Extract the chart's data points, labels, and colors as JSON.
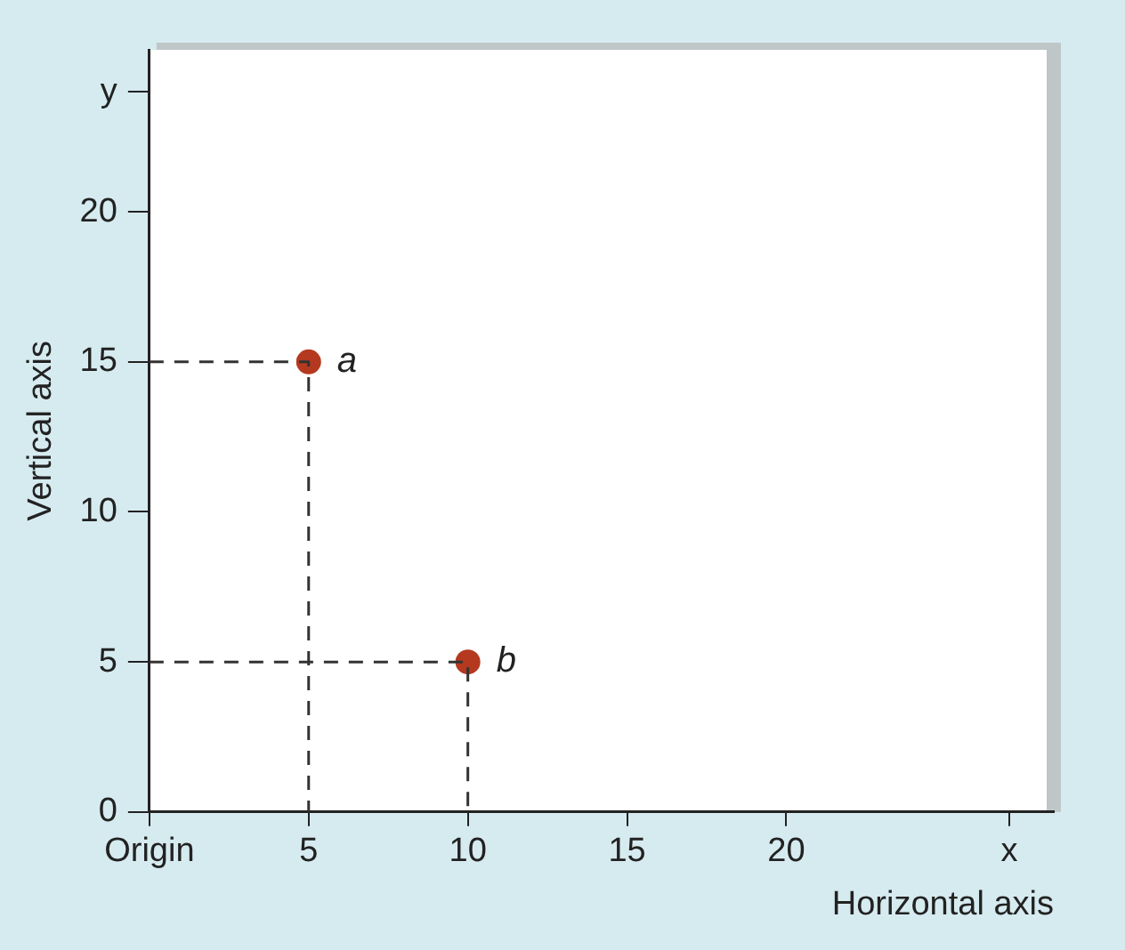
{
  "chart_data": {
    "type": "scatter",
    "xlabel": "Horizontal axis",
    "ylabel": "Vertical axis",
    "xlim": [
      0,
      28.4
    ],
    "ylim": [
      0,
      25.4
    ],
    "xticks": [
      {
        "value": 0,
        "label": "Origin"
      },
      5,
      10,
      15,
      20,
      {
        "value": 27,
        "label": "x"
      }
    ],
    "yticks": [
      0,
      5,
      10,
      15,
      20,
      {
        "value": 24,
        "label": "y"
      }
    ],
    "grid": false,
    "legend": false,
    "series": [
      {
        "type": "line",
        "color": "#333333",
        "x": [
          0,
          5,
          5
        ],
        "values": [
          15,
          15,
          0
        ],
        "line_style": "dashed",
        "marker": "none"
      },
      {
        "type": "line",
        "color": "#333333",
        "x": [
          0,
          10,
          10
        ],
        "values": [
          5,
          5,
          0
        ],
        "line_style": "dashed",
        "marker": "none"
      },
      {
        "color": "#b5391f",
        "x": [
          5,
          10
        ],
        "values": [
          15,
          5
        ],
        "marker": "circle"
      }
    ],
    "annotations": [
      {
        "text": "a",
        "x": 5,
        "y": 15
      },
      {
        "text": "b",
        "x": 10,
        "y": 5
      }
    ]
  }
}
